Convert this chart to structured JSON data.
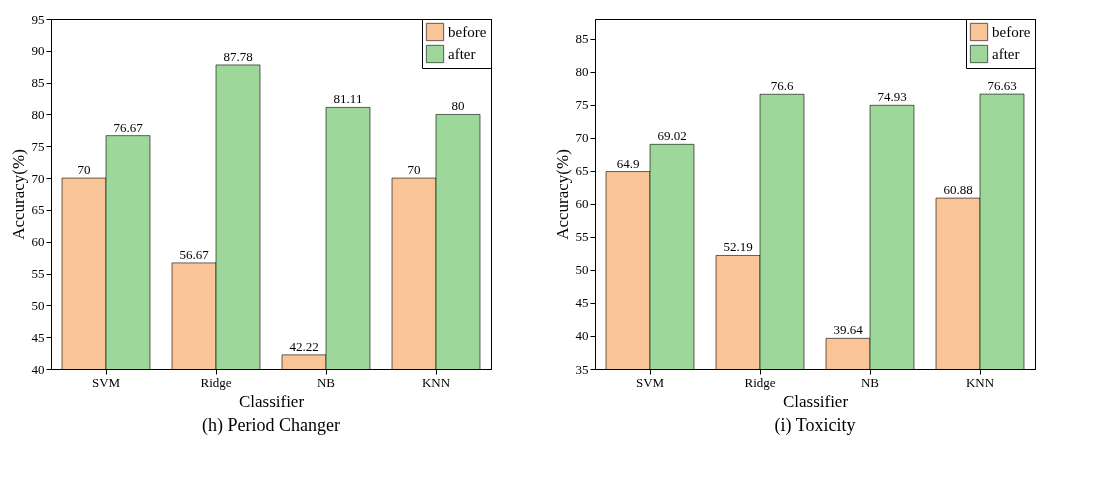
{
  "chart_data": [
    {
      "type": "bar",
      "title": "(h) Period Changer",
      "xlabel": "Classifier",
      "ylabel": "Accuracy(%)",
      "categories": [
        "SVM",
        "Ridge",
        "NB",
        "KNN"
      ],
      "series": [
        {
          "name": "before",
          "color": "#f9c598",
          "values": [
            70,
            56.67,
            42.22,
            70
          ]
        },
        {
          "name": "after",
          "color": "#9dd89a",
          "values": [
            76.67,
            87.78,
            81.11,
            80
          ]
        }
      ],
      "ylim": [
        40,
        95
      ],
      "yticks": [
        40,
        45,
        50,
        55,
        60,
        65,
        70,
        75,
        80,
        85,
        90,
        95
      ],
      "grid": false,
      "legend": "top right",
      "data_labels": true
    },
    {
      "type": "bar",
      "title": "(i) Toxicity",
      "xlabel": "Classifier",
      "ylabel": "Accuracy(%)",
      "categories": [
        "SVM",
        "Ridge",
        "NB",
        "KNN"
      ],
      "series": [
        {
          "name": "before",
          "color": "#f9c598",
          "values": [
            64.9,
            52.19,
            39.64,
            60.88
          ]
        },
        {
          "name": "after",
          "color": "#9dd89a",
          "values": [
            69.02,
            76.6,
            74.93,
            76.63
          ]
        }
      ],
      "ylim": [
        35,
        88
      ],
      "yticks": [
        35,
        40,
        45,
        50,
        55,
        60,
        65,
        70,
        75,
        80,
        85
      ],
      "grid": false,
      "legend": "top right",
      "data_labels": true
    }
  ]
}
